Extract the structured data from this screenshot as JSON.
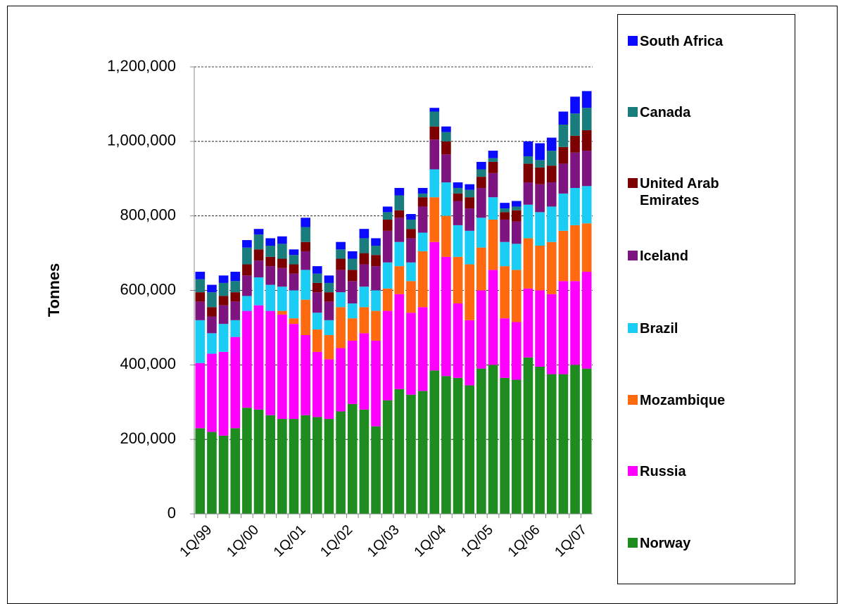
{
  "chart_data": {
    "type": "stacked_bar",
    "y_label": "Tonnes",
    "categories": [
      "1Q/99",
      null,
      null,
      null,
      "1Q/00",
      null,
      null,
      null,
      "1Q/01",
      null,
      null,
      null,
      "1Q/02",
      null,
      null,
      null,
      "1Q/03",
      null,
      null,
      null,
      "1Q/04",
      null,
      null,
      null,
      "1Q/05",
      null,
      null,
      null,
      "1Q/06",
      null,
      null,
      null,
      "1Q/07",
      null
    ],
    "ylim": [
      0,
      1200000
    ],
    "yticks": [
      0,
      {
        "value": 200000,
        "label": "200,000"
      },
      {
        "value": 400000,
        "label": "400,000"
      },
      {
        "value": 600000,
        "label": "600,000"
      },
      {
        "value": 800000,
        "label": "800,000"
      },
      {
        "value": 1000000,
        "label": "1,000,000"
      },
      {
        "value": 1200000,
        "label": "1,200,000"
      }
    ],
    "grid": true,
    "series": [
      {
        "name": "Norway",
        "color": "#1e8c1e",
        "values": [
          230000,
          220000,
          210000,
          230000,
          285000,
          280000,
          265000,
          255000,
          255000,
          265000,
          260000,
          255000,
          275000,
          295000,
          280000,
          235000,
          305000,
          335000,
          320000,
          330000,
          385000,
          370000,
          365000,
          345000,
          390000,
          400000,
          365000,
          360000,
          420000,
          395000,
          375000,
          375000,
          400000,
          390000
        ]
      },
      {
        "name": "Russia",
        "color": "#ff00ff",
        "values": [
          175000,
          210000,
          225000,
          245000,
          260000,
          280000,
          280000,
          280000,
          255000,
          215000,
          175000,
          160000,
          170000,
          170000,
          205000,
          230000,
          240000,
          255000,
          220000,
          225000,
          345000,
          320000,
          200000,
          175000,
          210000,
          255000,
          160000,
          155000,
          185000,
          205000,
          215000,
          250000,
          225000,
          260000
        ]
      },
      {
        "name": "Mozambique",
        "color": "#ff6a10",
        "values": [
          0,
          0,
          0,
          0,
          0,
          0,
          0,
          10000,
          15000,
          95000,
          60000,
          65000,
          110000,
          60000,
          70000,
          80000,
          60000,
          75000,
          85000,
          150000,
          120000,
          110000,
          125000,
          150000,
          115000,
          135000,
          140000,
          140000,
          135000,
          120000,
          140000,
          135000,
          150000,
          130000
        ]
      },
      {
        "name": "Brazil",
        "color": "#19cdf5",
        "values": [
          115000,
          55000,
          75000,
          45000,
          40000,
          75000,
          70000,
          65000,
          75000,
          80000,
          45000,
          40000,
          40000,
          40000,
          55000,
          55000,
          70000,
          65000,
          50000,
          50000,
          75000,
          90000,
          85000,
          90000,
          80000,
          60000,
          65000,
          70000,
          90000,
          90000,
          95000,
          100000,
          100000,
          100000
        ]
      },
      {
        "name": "Iceland",
        "color": "#7d1480",
        "values": [
          50000,
          45000,
          50000,
          50000,
          55000,
          45000,
          50000,
          50000,
          45000,
          50000,
          55000,
          50000,
          60000,
          60000,
          60000,
          65000,
          85000,
          65000,
          65000,
          70000,
          80000,
          75000,
          65000,
          60000,
          80000,
          65000,
          60000,
          60000,
          60000,
          75000,
          65000,
          80000,
          95000,
          95000
        ]
      },
      {
        "name": "United Arab Emirates",
        "color": "#7d0000",
        "values": [
          25000,
          25000,
          25000,
          25000,
          30000,
          30000,
          25000,
          25000,
          25000,
          25000,
          25000,
          25000,
          30000,
          30000,
          30000,
          30000,
          30000,
          20000,
          25000,
          25000,
          35000,
          35000,
          20000,
          30000,
          30000,
          30000,
          20000,
          30000,
          50000,
          45000,
          45000,
          45000,
          45000,
          55000
        ]
      },
      {
        "name": "Canada",
        "color": "#197d7d",
        "values": [
          35000,
          40000,
          35000,
          30000,
          45000,
          40000,
          30000,
          40000,
          25000,
          40000,
          25000,
          25000,
          25000,
          30000,
          40000,
          25000,
          20000,
          40000,
          25000,
          10000,
          40000,
          25000,
          15000,
          20000,
          20000,
          10000,
          10000,
          10000,
          20000,
          20000,
          40000,
          60000,
          60000,
          60000
        ]
      },
      {
        "name": "South Africa",
        "color": "#0a0aff",
        "values": [
          20000,
          20000,
          20000,
          25000,
          20000,
          15000,
          20000,
          20000,
          15000,
          25000,
          20000,
          20000,
          20000,
          20000,
          25000,
          20000,
          15000,
          20000,
          15000,
          15000,
          10000,
          15000,
          15000,
          15000,
          20000,
          20000,
          15000,
          15000,
          40000,
          45000,
          35000,
          35000,
          45000,
          45000
        ]
      }
    ]
  }
}
